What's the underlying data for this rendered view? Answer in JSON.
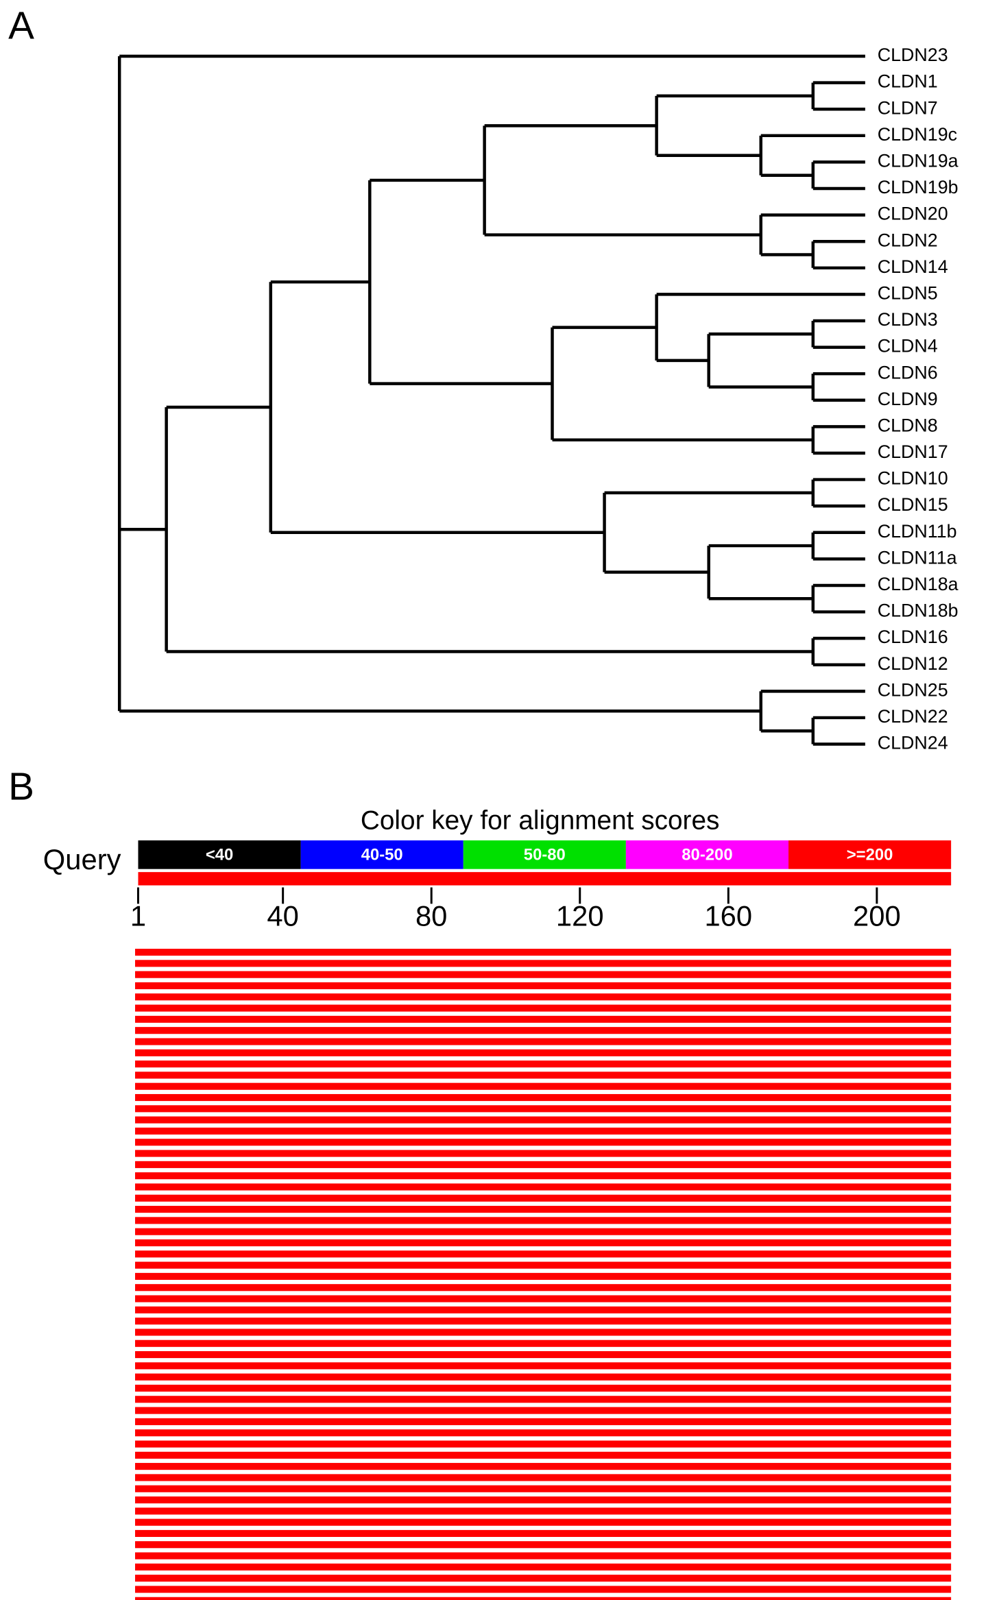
{
  "panel_a": {
    "label": "A",
    "tree": {
      "height": 14.3,
      "children": [
        {
          "name": "CLDN23"
        },
        {
          "height": 13.4,
          "children": [
            {
              "height": 11.4,
              "children": [
                {
                  "height": 9.5,
                  "children": [
                    {
                      "height": 7.3,
                      "children": [
                        {
                          "height": 4,
                          "children": [
                            {
                              "height": 1,
                              "children": [
                                {
                                  "name": "CLDN1"
                                },
                                {
                                  "name": "CLDN7"
                                }
                              ]
                            },
                            {
                              "height": 2,
                              "children": [
                                {
                                  "name": "CLDN19c"
                                },
                                {
                                  "height": 1,
                                  "children": [
                                    {
                                      "name": "CLDN19a"
                                    },
                                    {
                                      "name": "CLDN19b"
                                    }
                                  ]
                                }
                              ]
                            }
                          ]
                        },
                        {
                          "height": 2,
                          "children": [
                            {
                              "name": "CLDN20"
                            },
                            {
                              "height": 1,
                              "children": [
                                {
                                  "name": "CLDN2"
                                },
                                {
                                  "name": "CLDN14"
                                }
                              ]
                            }
                          ]
                        }
                      ]
                    },
                    {
                      "height": 6,
                      "children": [
                        {
                          "height": 4,
                          "children": [
                            {
                              "name": "CLDN5"
                            },
                            {
                              "height": 3,
                              "children": [
                                {
                                  "height": 1,
                                  "children": [
                                    {
                                      "name": "CLDN3"
                                    },
                                    {
                                      "name": "CLDN4"
                                    }
                                  ]
                                },
                                {
                                  "height": 1,
                                  "children": [
                                    {
                                      "name": "CLDN6"
                                    },
                                    {
                                      "name": "CLDN9"
                                    }
                                  ]
                                }
                              ]
                            }
                          ]
                        },
                        {
                          "height": 1,
                          "children": [
                            {
                              "name": "CLDN8"
                            },
                            {
                              "name": "CLDN17"
                            }
                          ]
                        }
                      ]
                    }
                  ]
                },
                {
                  "height": 5,
                  "children": [
                    {
                      "height": 1,
                      "children": [
                        {
                          "name": "CLDN10"
                        },
                        {
                          "name": "CLDN15"
                        }
                      ]
                    },
                    {
                      "height": 3,
                      "children": [
                        {
                          "height": 1,
                          "children": [
                            {
                              "name": "CLDN11b"
                            },
                            {
                              "name": "CLDN11a"
                            }
                          ]
                        },
                        {
                          "height": 1,
                          "children": [
                            {
                              "name": "CLDN18a"
                            },
                            {
                              "name": "CLDN18b"
                            }
                          ]
                        }
                      ]
                    }
                  ]
                }
              ]
            },
            {
              "height": 1,
              "children": [
                {
                  "name": "CLDN16"
                },
                {
                  "name": "CLDN12"
                }
              ]
            }
          ]
        },
        {
          "height": 2,
          "children": [
            {
              "name": "CLDN25"
            },
            {
              "height": 1,
              "children": [
                {
                  "name": "CLDN22"
                },
                {
                  "name": "CLDN24"
                }
              ]
            }
          ]
        }
      ]
    }
  },
  "panel_b": {
    "label": "B",
    "title": "Color key for alignment scores",
    "query_label": "Query",
    "color_key": [
      {
        "label": "<40",
        "color": "#000000"
      },
      {
        "label": "40-50",
        "color": "#0000ff"
      },
      {
        "label": "50-80",
        "color": "#00e000"
      },
      {
        "label": "80-200",
        "color": "#ff00ff"
      },
      {
        "label": ">=200",
        "color": "#ff0000"
      }
    ],
    "xlim": [
      1,
      220
    ],
    "xticks": [
      1,
      40,
      80,
      120,
      160,
      200
    ],
    "query_bar": {
      "start": 1,
      "end": 220,
      "color": "#ff0000"
    },
    "hits": {
      "count": 60,
      "start": 1,
      "end": 220,
      "color": "#ff0000"
    }
  }
}
